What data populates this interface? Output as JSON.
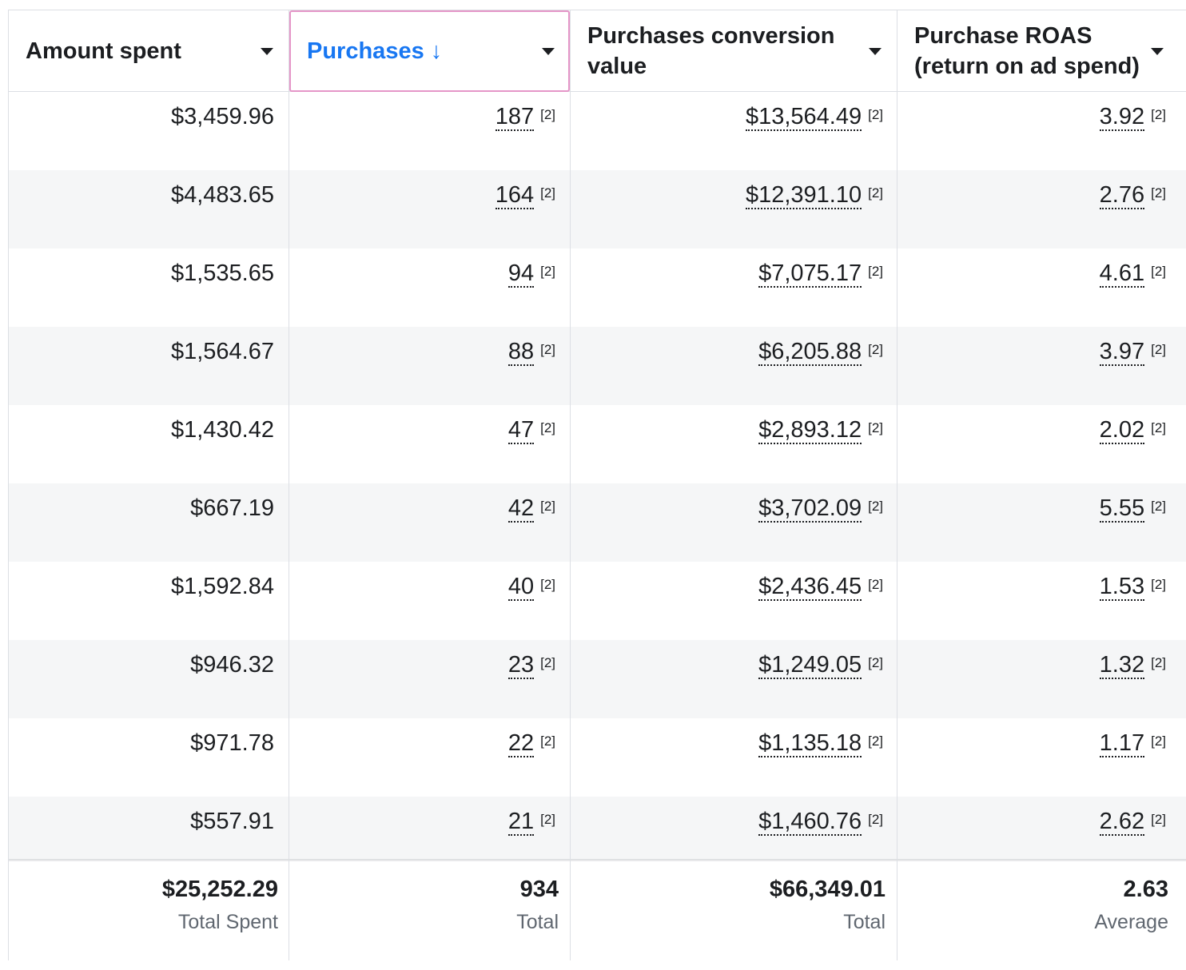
{
  "headers": {
    "amount_spent": "Amount spent",
    "purchases": "Purchases",
    "purchases_sort_icon": "↓",
    "conversion_value_line1": "Purchases conversion",
    "conversion_value_line2": "value",
    "roas_line1": "Purchase ROAS",
    "roas_line2": "(return on ad spend)"
  },
  "reference_marker": "[2]",
  "rows": [
    {
      "amount_spent": "$3,459.96",
      "purchases": "187",
      "conversion_value": "$13,564.49",
      "roas": "3.92"
    },
    {
      "amount_spent": "$4,483.65",
      "purchases": "164",
      "conversion_value": "$12,391.10",
      "roas": "2.76"
    },
    {
      "amount_spent": "$1,535.65",
      "purchases": "94",
      "conversion_value": "$7,075.17",
      "roas": "4.61"
    },
    {
      "amount_spent": "$1,564.67",
      "purchases": "88",
      "conversion_value": "$6,205.88",
      "roas": "3.97"
    },
    {
      "amount_spent": "$1,430.42",
      "purchases": "47",
      "conversion_value": "$2,893.12",
      "roas": "2.02"
    },
    {
      "amount_spent": "$667.19",
      "purchases": "42",
      "conversion_value": "$3,702.09",
      "roas": "5.55"
    },
    {
      "amount_spent": "$1,592.84",
      "purchases": "40",
      "conversion_value": "$2,436.45",
      "roas": "1.53"
    },
    {
      "amount_spent": "$946.32",
      "purchases": "23",
      "conversion_value": "$1,249.05",
      "roas": "1.32"
    },
    {
      "amount_spent": "$971.78",
      "purchases": "22",
      "conversion_value": "$1,135.18",
      "roas": "1.17"
    },
    {
      "amount_spent": "$557.91",
      "purchases": "21",
      "conversion_value": "$1,460.76",
      "roas": "2.62"
    }
  ],
  "totals": {
    "amount_spent": {
      "value": "$25,252.29",
      "label": "Total Spent"
    },
    "purchases": {
      "value": "934",
      "label": "Total"
    },
    "conversion_value": {
      "value": "$66,349.01",
      "label": "Total"
    },
    "roas": {
      "value": "2.63",
      "label": "Average"
    }
  },
  "colors": {
    "active_header_text": "#1877f2",
    "active_header_border": "#e596c8",
    "alt_row_background": "#f5f6f7",
    "secondary_text": "#606770"
  }
}
